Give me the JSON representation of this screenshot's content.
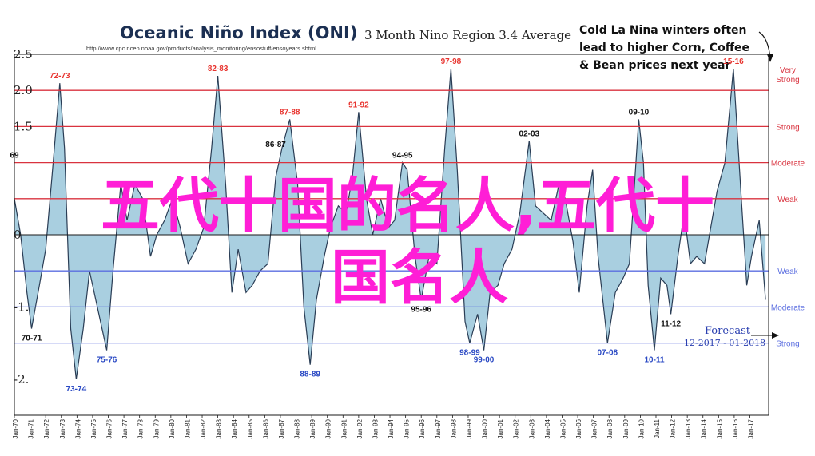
{
  "header": {
    "title": "Oceanic Niño Index (ONI)",
    "subtitle": "3 Month Nino Region 3.4 Average",
    "source_url": "http://www.cpc.ncep.noaa.gov/products/analysis_monitoring/ensostuff/ensoyears.shtml"
  },
  "callout": {
    "lines": [
      "Cold La Nina winters often",
      "lead to higher Corn, Coffee",
      "& Bean prices next year"
    ]
  },
  "watermark": {
    "line1": "五代十国的名人,五代十",
    "line2": "国名人",
    "color": "#ff1ed6"
  },
  "forecast": {
    "label": "Forecast",
    "range": "12-2017 - 01-2018"
  },
  "chart_data": {
    "type": "area",
    "ylim": [
      -2.5,
      2.5
    ],
    "y_ticks": [
      "2.5",
      "2.0",
      "1.5",
      "1.0",
      "0.5",
      "0",
      "-0.5",
      "-1.0",
      "-1.5",
      "-2.0"
    ],
    "y_ticks_visible": [
      "2.5",
      "2.0",
      "1.5",
      "",
      "",
      "0",
      "",
      "-1.",
      "",
      "-2."
    ],
    "x_ticks": [
      "Jan-70",
      "Jan-71",
      "Jan-72",
      "Jan-73",
      "Jan-74",
      "Jan-75",
      "Jan-76",
      "Jan-77",
      "Jan-78",
      "Jan-79",
      "Jan-80",
      "Jan-81",
      "Jan-82",
      "Jan-83",
      "Jan-84",
      "Jan-85",
      "Jan-86",
      "Jan-87",
      "Jan-88",
      "Jan-89",
      "Jan-90",
      "Jan-91",
      "Jan-92",
      "Jan-93",
      "Jan-94",
      "Jan-95",
      "Jan-96",
      "Jan-97",
      "Jan-98",
      "Jan-99",
      "Jan-00",
      "Jan-01",
      "Jan-02",
      "Jan-03",
      "Jan-04",
      "Jan-05",
      "Jan-06",
      "Jan-07",
      "Jan-08",
      "Jan-09",
      "Jan-10",
      "Jan-11",
      "Jan-12",
      "Jan-13",
      "Jan-14",
      "Jan-15",
      "Jan-16",
      "Jan-17"
    ],
    "x_range": [
      1970.0,
      2018.2
    ],
    "series": [
      {
        "color": "#a9cfe0",
        "points": [
          [
            1970.0,
            0.5
          ],
          [
            1970.4,
            0.0
          ],
          [
            1970.8,
            -0.8
          ],
          [
            1971.1,
            -1.3
          ],
          [
            1971.6,
            -0.7
          ],
          [
            1972.0,
            -0.2
          ],
          [
            1972.4,
            0.8
          ],
          [
            1972.9,
            2.1
          ],
          [
            1973.2,
            1.2
          ],
          [
            1973.6,
            -1.3
          ],
          [
            1973.95,
            -2.0
          ],
          [
            1974.4,
            -1.3
          ],
          [
            1974.8,
            -0.5
          ],
          [
            1975.3,
            -1.0
          ],
          [
            1975.9,
            -1.6
          ],
          [
            1976.3,
            -0.5
          ],
          [
            1976.8,
            0.7
          ],
          [
            1977.2,
            0.2
          ],
          [
            1977.7,
            0.7
          ],
          [
            1978.2,
            0.5
          ],
          [
            1978.7,
            -0.3
          ],
          [
            1979.1,
            0.0
          ],
          [
            1979.6,
            0.2
          ],
          [
            1980.1,
            0.5
          ],
          [
            1980.6,
            0.1
          ],
          [
            1981.1,
            -0.4
          ],
          [
            1981.6,
            -0.2
          ],
          [
            1982.1,
            0.1
          ],
          [
            1982.6,
            1.2
          ],
          [
            1983.0,
            2.2
          ],
          [
            1983.5,
            0.7
          ],
          [
            1983.9,
            -0.8
          ],
          [
            1984.3,
            -0.2
          ],
          [
            1984.8,
            -0.8
          ],
          [
            1985.2,
            -0.7
          ],
          [
            1985.7,
            -0.5
          ],
          [
            1986.2,
            -0.4
          ],
          [
            1986.7,
            0.8
          ],
          [
            1987.1,
            1.2
          ],
          [
            1987.6,
            1.6
          ],
          [
            1988.1,
            0.7
          ],
          [
            1988.5,
            -1.0
          ],
          [
            1988.9,
            -1.8
          ],
          [
            1989.3,
            -0.9
          ],
          [
            1989.8,
            -0.3
          ],
          [
            1990.2,
            0.1
          ],
          [
            1990.7,
            0.4
          ],
          [
            1991.2,
            0.3
          ],
          [
            1991.6,
            0.8
          ],
          [
            1992.0,
            1.7
          ],
          [
            1992.5,
            0.5
          ],
          [
            1992.9,
            0.0
          ],
          [
            1993.4,
            0.5
          ],
          [
            1993.9,
            0.1
          ],
          [
            1994.3,
            0.2
          ],
          [
            1994.8,
            1.0
          ],
          [
            1995.1,
            0.9
          ],
          [
            1995.6,
            -0.3
          ],
          [
            1996.0,
            -0.9
          ],
          [
            1996.5,
            -0.3
          ],
          [
            1997.0,
            -0.4
          ],
          [
            1997.5,
            1.2
          ],
          [
            1997.9,
            2.3
          ],
          [
            1998.3,
            0.9
          ],
          [
            1998.8,
            -1.2
          ],
          [
            1999.1,
            -1.5
          ],
          [
            1999.6,
            -1.1
          ],
          [
            2000.0,
            -1.6
          ],
          [
            2000.4,
            -0.8
          ],
          [
            2000.9,
            -0.7
          ],
          [
            2001.3,
            -0.4
          ],
          [
            2001.8,
            -0.2
          ],
          [
            2002.3,
            0.3
          ],
          [
            2002.9,
            1.3
          ],
          [
            2003.3,
            0.4
          ],
          [
            2003.8,
            0.3
          ],
          [
            2004.3,
            0.2
          ],
          [
            2004.8,
            0.7
          ],
          [
            2005.2,
            0.5
          ],
          [
            2005.7,
            -0.1
          ],
          [
            2006.1,
            -0.8
          ],
          [
            2006.6,
            0.4
          ],
          [
            2006.95,
            0.9
          ],
          [
            2007.3,
            -0.3
          ],
          [
            2007.9,
            -1.5
          ],
          [
            2008.4,
            -0.8
          ],
          [
            2008.9,
            -0.6
          ],
          [
            2009.3,
            -0.4
          ],
          [
            2009.9,
            1.6
          ],
          [
            2010.2,
            1.0
          ],
          [
            2010.5,
            -0.7
          ],
          [
            2010.9,
            -1.6
          ],
          [
            2011.3,
            -0.6
          ],
          [
            2011.7,
            -0.7
          ],
          [
            2011.95,
            -1.1
          ],
          [
            2012.4,
            -0.3
          ],
          [
            2012.8,
            0.3
          ],
          [
            2013.2,
            -0.4
          ],
          [
            2013.6,
            -0.3
          ],
          [
            2014.1,
            -0.4
          ],
          [
            2014.5,
            0.1
          ],
          [
            2014.9,
            0.6
          ],
          [
            2015.4,
            1.0
          ],
          [
            2015.95,
            2.3
          ],
          [
            2016.4,
            0.7
          ],
          [
            2016.8,
            -0.7
          ],
          [
            2017.1,
            -0.3
          ],
          [
            2017.6,
            0.2
          ],
          [
            2018.0,
            -0.9
          ]
        ]
      }
    ],
    "reference_lines": [
      {
        "y": 2.0,
        "label": "Very Strong",
        "color": "#d9333f"
      },
      {
        "y": 1.5,
        "label": "Strong",
        "color": "#d9333f"
      },
      {
        "y": 1.0,
        "label": "Moderate",
        "color": "#d9333f"
      },
      {
        "y": 0.5,
        "label": "Weak",
        "color": "#d9333f"
      },
      {
        "y": -0.5,
        "label": "Weak",
        "color": "#5b6ee0"
      },
      {
        "y": -1.0,
        "label": "Moderate",
        "color": "#5b6ee0"
      },
      {
        "y": -1.5,
        "label": "Strong",
        "color": "#5b6ee0"
      }
    ],
    "peak_labels": [
      {
        "label": "72-73",
        "x": 1972.9,
        "y": 2.1,
        "color": "#e8342f",
        "pos": "above"
      },
      {
        "label": "82-83",
        "x": 1983.0,
        "y": 2.2,
        "color": "#e8342f",
        "pos": "above"
      },
      {
        "label": "87-88",
        "x": 1987.6,
        "y": 1.6,
        "color": "#e8342f",
        "pos": "above"
      },
      {
        "label": "91-92",
        "x": 1992.0,
        "y": 1.7,
        "color": "#e8342f",
        "pos": "above"
      },
      {
        "label": "97-98",
        "x": 1997.9,
        "y": 2.3,
        "color": "#e8342f",
        "pos": "above"
      },
      {
        "label": "15-16",
        "x": 2015.95,
        "y": 2.3,
        "color": "#e8342f",
        "pos": "above"
      },
      {
        "label": "86-87",
        "x": 1986.7,
        "y": 1.15,
        "color": "#111111",
        "pos": "above"
      },
      {
        "label": "94-95",
        "x": 1994.8,
        "y": 1.0,
        "color": "#111111",
        "pos": "above"
      },
      {
        "label": "02-03",
        "x": 2002.9,
        "y": 1.3,
        "color": "#111111",
        "pos": "above"
      },
      {
        "label": "09-10",
        "x": 2009.9,
        "y": 1.6,
        "color": "#111111",
        "pos": "above"
      },
      {
        "label": "69",
        "x": 1970.0,
        "y": 1.0,
        "color": "#111111",
        "pos": "above"
      },
      {
        "label": "70-71",
        "x": 1971.1,
        "y": -1.3,
        "color": "#111111",
        "pos": "below"
      },
      {
        "label": "73-74",
        "x": 1973.95,
        "y": -2.0,
        "color": "#2a49c4",
        "pos": "below"
      },
      {
        "label": "75-76",
        "x": 1975.9,
        "y": -1.6,
        "color": "#2a49c4",
        "pos": "below"
      },
      {
        "label": "88-89",
        "x": 1988.9,
        "y": -1.8,
        "color": "#2a49c4",
        "pos": "below"
      },
      {
        "label": "95-96",
        "x": 1996.0,
        "y": -0.9,
        "color": "#111111",
        "pos": "below"
      },
      {
        "label": "98-99",
        "x": 1999.1,
        "y": -1.5,
        "color": "#2a49c4",
        "pos": "below"
      },
      {
        "label": "99-00",
        "x": 2000.0,
        "y": -1.6,
        "color": "#2a49c4",
        "pos": "below"
      },
      {
        "label": "07-08",
        "x": 2007.9,
        "y": -1.5,
        "color": "#2a49c4",
        "pos": "below"
      },
      {
        "label": "10-11",
        "x": 2010.9,
        "y": -1.6,
        "color": "#2a49c4",
        "pos": "below"
      },
      {
        "label": "11-12",
        "x": 2011.95,
        "y": -1.1,
        "color": "#111111",
        "pos": "below"
      }
    ]
  }
}
